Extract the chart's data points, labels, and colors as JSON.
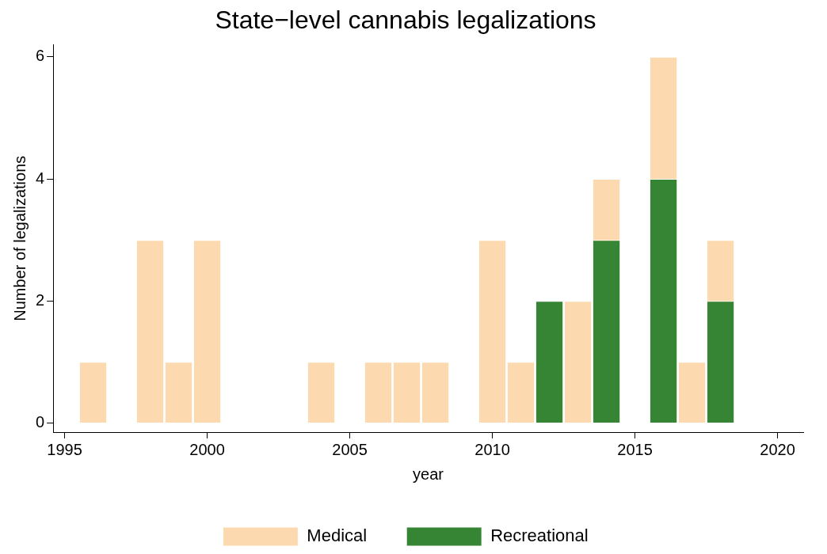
{
  "chart_data": {
    "type": "bar",
    "title": "State−level cannabis legalizations",
    "xlabel": "year",
    "ylabel": "Number of legalizations",
    "x": [
      1996,
      1998,
      1999,
      2000,
      2004,
      2006,
      2007,
      2008,
      2010,
      2011,
      2012,
      2013,
      2014,
      2016,
      2017,
      2018
    ],
    "series": [
      {
        "name": "Medical",
        "color": "#fdd9b0",
        "values": [
          1,
          3,
          1,
          3,
          1,
          1,
          1,
          1,
          3,
          1,
          null,
          2,
          4,
          6,
          1,
          3
        ]
      },
      {
        "name": "Recreational",
        "color": "#358535",
        "values": [
          null,
          null,
          null,
          null,
          null,
          null,
          null,
          null,
          null,
          null,
          2,
          null,
          3,
          4,
          null,
          2
        ]
      }
    ],
    "xlim": [
      1994.6,
      2020.9
    ],
    "xticks": [
      1995,
      2000,
      2005,
      2010,
      2015,
      2020
    ],
    "ylim": [
      -0.15,
      6.2
    ],
    "yticks": [
      0,
      2,
      4,
      6
    ],
    "grid": false,
    "legend": "bottom"
  }
}
